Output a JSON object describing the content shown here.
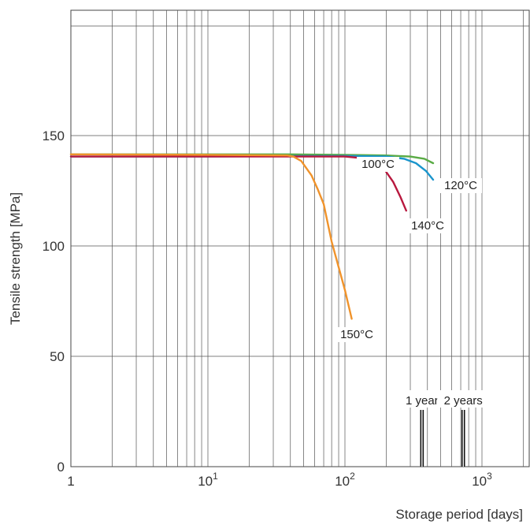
{
  "chart_data": {
    "type": "line",
    "title": "",
    "xlabel": "Storage period [days]",
    "ylabel": "Tensile strength [MPa]",
    "x_scale": "log",
    "xlim": [
      1,
      2200
    ],
    "ylim": [
      0,
      200
    ],
    "x_ticks": [
      {
        "value": 1,
        "base": "1",
        "exp": ""
      },
      {
        "value": 10,
        "base": "10",
        "exp": "1"
      },
      {
        "value": 100,
        "base": "10",
        "exp": "2"
      },
      {
        "value": 1000,
        "base": "10",
        "exp": "3"
      }
    ],
    "y_ticks": [
      0,
      50,
      100,
      150
    ],
    "grid": true,
    "legend": "none",
    "series": [
      {
        "name": "100°C",
        "color": "#5aab45",
        "x": [
          1,
          10,
          40,
          100,
          200,
          300,
          380,
          440
        ],
        "y": [
          141.5,
          141.5,
          141.5,
          141.3,
          141.0,
          140.5,
          139.5,
          137.5
        ]
      },
      {
        "name": "120°C",
        "color": "#1a95cc",
        "x": [
          1,
          10,
          40,
          100,
          200,
          270,
          330,
          390,
          440
        ],
        "y": [
          140.5,
          140.5,
          140.7,
          140.8,
          140.5,
          139.5,
          137.5,
          134.0,
          130.0
        ]
      },
      {
        "name": "140°C",
        "color": "#b8183e",
        "x": [
          1,
          10,
          40,
          100,
          150,
          190,
          225,
          255,
          280
        ],
        "y": [
          140.5,
          140.5,
          140.5,
          140.5,
          139.5,
          135.5,
          129.0,
          122.0,
          116.0
        ]
      },
      {
        "name": "150°C",
        "color": "#f0932b",
        "x": [
          1,
          10,
          38,
          42,
          48,
          57,
          63,
          70,
          80,
          100,
          112
        ],
        "y": [
          141.5,
          141.3,
          141.0,
          140.5,
          138.5,
          132.0,
          126.0,
          119.0,
          102.0,
          80.0,
          67.0
        ]
      }
    ],
    "annotations": [
      {
        "text": "1 year",
        "x": 365
      },
      {
        "text": "2 years",
        "x": 730
      }
    ]
  }
}
